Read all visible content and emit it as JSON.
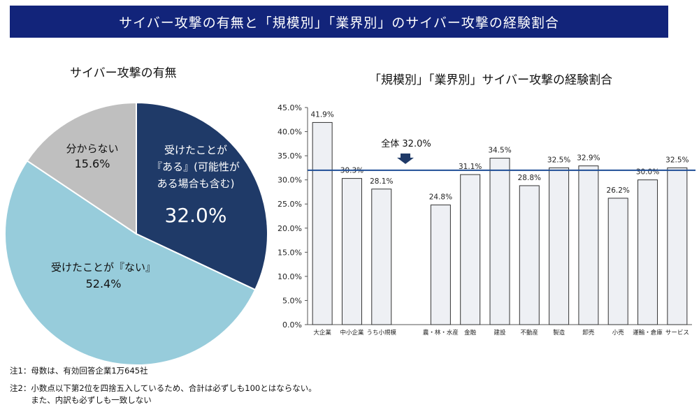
{
  "banner": {
    "title": "サイバー攻撃の有無と「規模別」「業界別」のサイバー攻撃の経験割合"
  },
  "chart_data": [
    {
      "type": "pie",
      "title": "サイバー攻撃の有無",
      "slices": [
        {
          "label_lines": [
            "受けたことが",
            "『ある』(可能性が",
            "ある場合も含む)"
          ],
          "value": 32.0,
          "value_label": "32.0%",
          "color": "#1f3a68"
        },
        {
          "label_lines": [
            "受けたことが『ない』"
          ],
          "value": 52.4,
          "value_label": "52.4%",
          "color": "#97ccdb"
        },
        {
          "label_lines": [
            "分からない"
          ],
          "value": 15.6,
          "value_label": "15.6%",
          "color": "#bfbfbf"
        }
      ]
    },
    {
      "type": "bar",
      "title": "「規模別」「業界別」サイバー攻撃の経験割合",
      "ylim": [
        0,
        45
      ],
      "yticks": [
        "0.0%",
        "5.0%",
        "10.0%",
        "15.0%",
        "20.0%",
        "25.0%",
        "30.0%",
        "35.0%",
        "40.0%",
        "45.0%"
      ],
      "categories": [
        "大企業",
        "中小企業",
        "うち小規模",
        "",
        "農・林・水産",
        "金融",
        "建設",
        "不動産",
        "製造",
        "卸売",
        "小売",
        "運輸・倉庫",
        "サービス"
      ],
      "values": [
        41.9,
        30.3,
        28.1,
        null,
        24.8,
        31.1,
        34.5,
        28.8,
        32.5,
        32.9,
        26.2,
        30.0,
        32.5
      ],
      "value_labels": [
        "41.9%",
        "30.3%",
        "28.1%",
        "",
        "24.8%",
        "31.1%",
        "34.5%",
        "28.8%",
        "32.5%",
        "32.9%",
        "26.2%",
        "30.0%",
        "32.5%"
      ],
      "reference_line": {
        "value": 32.0,
        "label": "全体 32.0%",
        "color": "#1f4e96"
      },
      "bar_color": "#eef0f4",
      "bar_stroke": "#333333"
    }
  ],
  "notes": {
    "note1": "注1：母数は、有効回答企業1万645社",
    "note2a": "注2：小数点以下第2位を四捨五入しているため、合計は必ずしも100とはならない。",
    "note2b": "　　  また、内訳も必ずしも一致しない"
  }
}
